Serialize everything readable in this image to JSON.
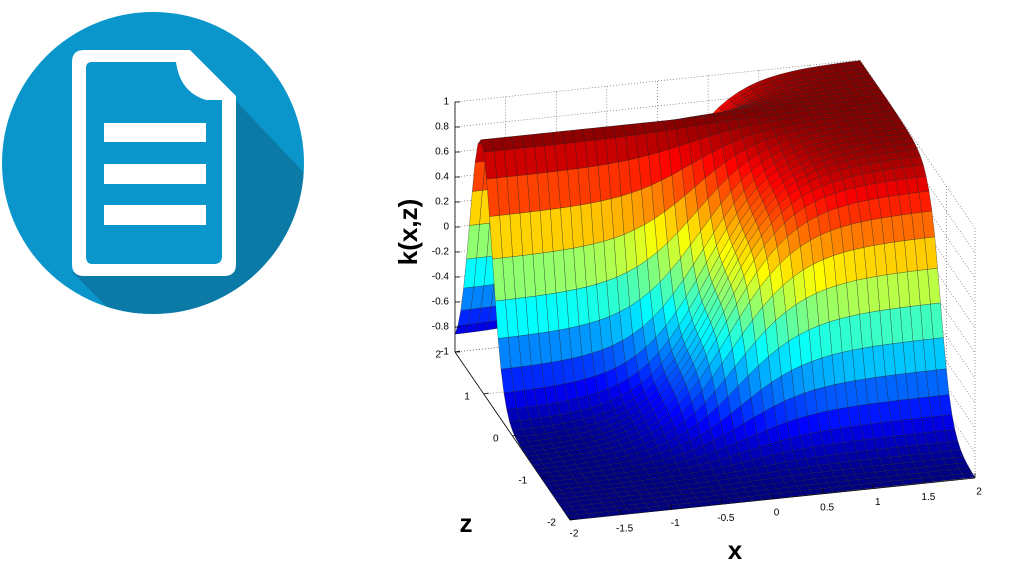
{
  "plot": {
    "vertical_axis_label": "k(x,z)",
    "x_axis_label": "x",
    "z_axis_label": "z",
    "vertical_ticks": [
      1,
      0.8,
      0.6,
      0.4,
      0.2,
      0,
      -0.2,
      -0.4,
      -0.6,
      -0.8,
      -1
    ],
    "x_ticks": [
      -2,
      -1.5,
      -1,
      -0.5,
      0,
      0.5,
      1,
      1.5,
      2
    ],
    "z_ticks": [
      2,
      1,
      0,
      -1,
      -2
    ]
  }
}
